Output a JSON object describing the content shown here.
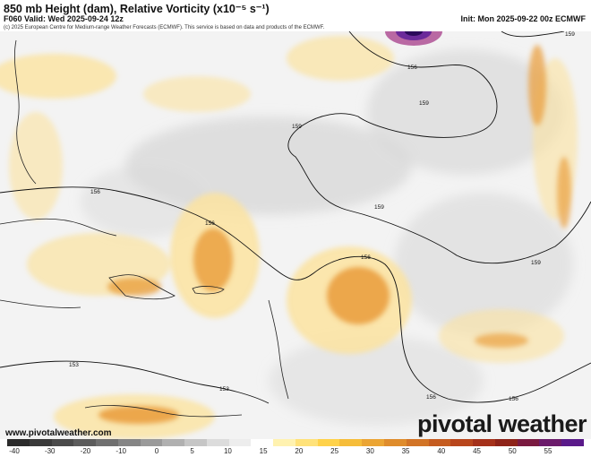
{
  "header": {
    "title": "850 mb Height (dam), Relative Vorticity (x10⁻⁵ s⁻¹)",
    "valid": "F060 Valid: Wed 2025-09-24 12z",
    "init": "Init: Mon 2025-09-22 00z ECMWF",
    "credit": "(c) 2025 European Centre for Medium-range Weather Forecasts (ECMWF). This service is based on data and products of the ECMWF."
  },
  "contour_labels": [
    "159",
    "156",
    "159",
    "159",
    "156",
    "156",
    "159",
    "156",
    "159",
    "153",
    "153",
    "156",
    "156"
  ],
  "branding": {
    "watermark": "pivotal weather",
    "site": "www.pivotalweather.com"
  },
  "colorbar": {
    "labels": [
      "-40",
      "-30",
      "-20",
      "-10",
      "0",
      "5",
      "10",
      "15",
      "20",
      "25",
      "30",
      "35",
      "40",
      "45",
      "50",
      "55"
    ],
    "colors": [
      "#2b2b2b",
      "#3a3a3a",
      "#4a4a4a",
      "#5c5c5c",
      "#707070",
      "#858585",
      "#9a9a9a",
      "#b0b0b0",
      "#c6c6c6",
      "#dcdcdc",
      "#ededed",
      "#ffffff",
      "#fff2b0",
      "#ffe27a",
      "#ffd24a",
      "#f6bd3a",
      "#eba534",
      "#df8c2c",
      "#d27426",
      "#c55c20",
      "#b8461c",
      "#a5311a",
      "#8e2318",
      "#7a1a40",
      "#6b1b6b",
      "#5a1a8a"
    ]
  },
  "colors": {
    "ocean_gray": "#e4e4e4",
    "low_vort_yellow": "#fbe3a0",
    "high_vort_orange": "#e89a3a",
    "contour": "#111111"
  }
}
